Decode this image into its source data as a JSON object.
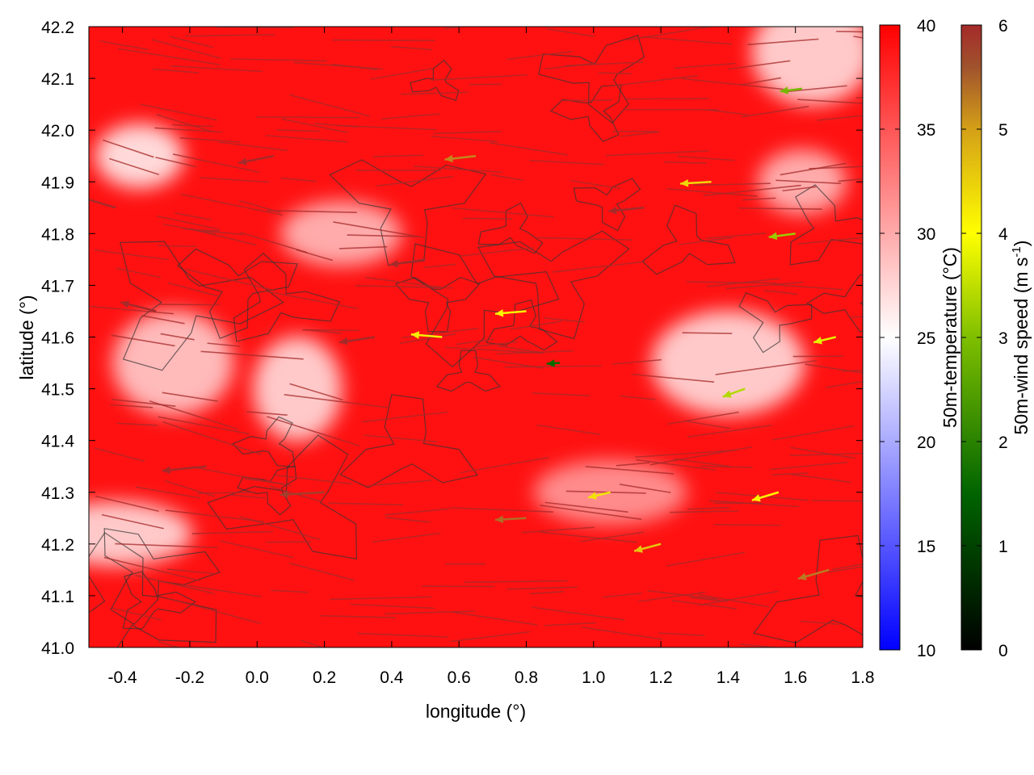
{
  "chart_data": {
    "type": "heatmap",
    "title": "",
    "xlabel": "longitude (°)",
    "ylabel": "latitude (°)",
    "xlim": [
      -0.5,
      1.8
    ],
    "ylim": [
      41.0,
      42.2
    ],
    "x_ticks": [
      "-0.4",
      "-0.2",
      "0.0",
      "0.2",
      "0.4",
      "0.6",
      "0.8",
      "1.0",
      "1.2",
      "1.4",
      "1.6",
      "1.8"
    ],
    "y_ticks": [
      "41.0",
      "41.1",
      "41.2",
      "41.3",
      "41.4",
      "41.5",
      "41.6",
      "41.7",
      "41.8",
      "41.9",
      "42.0",
      "42.1",
      "42.2"
    ],
    "grid": false,
    "legend": "none",
    "colorbars": [
      {
        "label": "50m-temperature (°C)",
        "range": [
          10,
          40
        ],
        "ticks": [
          "10",
          "15",
          "20",
          "25",
          "30",
          "35",
          "40"
        ],
        "colors": [
          "#0000ff",
          "#ffffff",
          "#ff0000"
        ],
        "color_stops": [
          10,
          25,
          40
        ]
      },
      {
        "label_main": "50m-wind speed (m s",
        "label_sup": "-1",
        "label_end": ")",
        "range": [
          0,
          6
        ],
        "ticks": [
          "0",
          "1",
          "2",
          "3",
          "4",
          "5",
          "6"
        ],
        "colors": [
          "#000000",
          "#006400",
          "#7fbf00",
          "#ffff00",
          "#d4a017",
          "#a0522d",
          "#a52a2a"
        ],
        "color_stops": [
          0,
          1.5,
          3,
          4,
          5,
          5.6,
          6
        ]
      }
    ],
    "temperature_field": {
      "background_value": 39,
      "cool_regions": [
        {
          "lon": -0.35,
          "lat": 41.95,
          "value": 26
        },
        {
          "lon": -0.25,
          "lat": 41.55,
          "value": 28
        },
        {
          "lon": -0.42,
          "lat": 41.22,
          "value": 27
        },
        {
          "lon": 0.12,
          "lat": 41.5,
          "value": 27
        },
        {
          "lon": 0.25,
          "lat": 41.8,
          "value": 29
        },
        {
          "lon": 1.4,
          "lat": 41.55,
          "value": 27
        },
        {
          "lon": 1.62,
          "lat": 41.9,
          "value": 29
        },
        {
          "lon": 1.65,
          "lat": 42.15,
          "value": 27
        },
        {
          "lon": 1.05,
          "lat": 41.3,
          "value": 31
        }
      ]
    },
    "wind_vectors": [
      {
        "lon": -0.42,
        "lat": 41.85,
        "u": 5,
        "v": -1.5,
        "speed": 6
      },
      {
        "lon": -0.3,
        "lat": 41.65,
        "u": 4,
        "v": -1,
        "speed": 6
      },
      {
        "lon": -0.15,
        "lat": 41.35,
        "u": 5,
        "v": 0.5,
        "speed": 6
      },
      {
        "lon": 0.05,
        "lat": 41.95,
        "u": 4,
        "v": 0.8,
        "speed": 6
      },
      {
        "lon": 0.2,
        "lat": 41.3,
        "u": 5,
        "v": 0.3,
        "speed": 5.8
      },
      {
        "lon": 0.35,
        "lat": 41.6,
        "u": 4,
        "v": 0.6,
        "speed": 6
      },
      {
        "lon": 0.5,
        "lat": 41.75,
        "u": 4,
        "v": 0.6,
        "speed": 6
      },
      {
        "lon": 0.55,
        "lat": 41.6,
        "u": 3.5,
        "v": -0.3,
        "speed": 4.2
      },
      {
        "lon": 0.65,
        "lat": 41.95,
        "u": 3.5,
        "v": 0.4,
        "speed": 5.2
      },
      {
        "lon": 0.8,
        "lat": 41.65,
        "u": 3.5,
        "v": 0.3,
        "speed": 4.1
      },
      {
        "lon": 0.8,
        "lat": 41.25,
        "u": 3.5,
        "v": 0.2,
        "speed": 5.4
      },
      {
        "lon": 0.9,
        "lat": 41.55,
        "u": 1.5,
        "v": 0.1,
        "speed": 1.6
      },
      {
        "lon": 1.05,
        "lat": 41.3,
        "u": 2.5,
        "v": 0.6,
        "speed": 4.3
      },
      {
        "lon": 1.15,
        "lat": 41.85,
        "u": 4,
        "v": 0.4,
        "speed": 6
      },
      {
        "lon": 1.2,
        "lat": 41.2,
        "u": 3,
        "v": 0.8,
        "speed": 4.6
      },
      {
        "lon": 1.35,
        "lat": 41.9,
        "u": 3.5,
        "v": 0.2,
        "speed": 4.4
      },
      {
        "lon": 1.45,
        "lat": 41.5,
        "u": 2.5,
        "v": 0.9,
        "speed": 3.4
      },
      {
        "lon": 1.55,
        "lat": 41.3,
        "u": 3,
        "v": 0.9,
        "speed": 4.1
      },
      {
        "lon": 1.6,
        "lat": 41.8,
        "u": 3,
        "v": 0.4,
        "speed": 3.2
      },
      {
        "lon": 1.62,
        "lat": 42.08,
        "u": 2.5,
        "v": 0.3,
        "speed": 2.9
      },
      {
        "lon": 1.7,
        "lat": 41.15,
        "u": 3.5,
        "v": 1,
        "speed": 5.3
      },
      {
        "lon": 1.72,
        "lat": 41.6,
        "u": 2.5,
        "v": 0.6,
        "speed": 3.8
      }
    ]
  }
}
